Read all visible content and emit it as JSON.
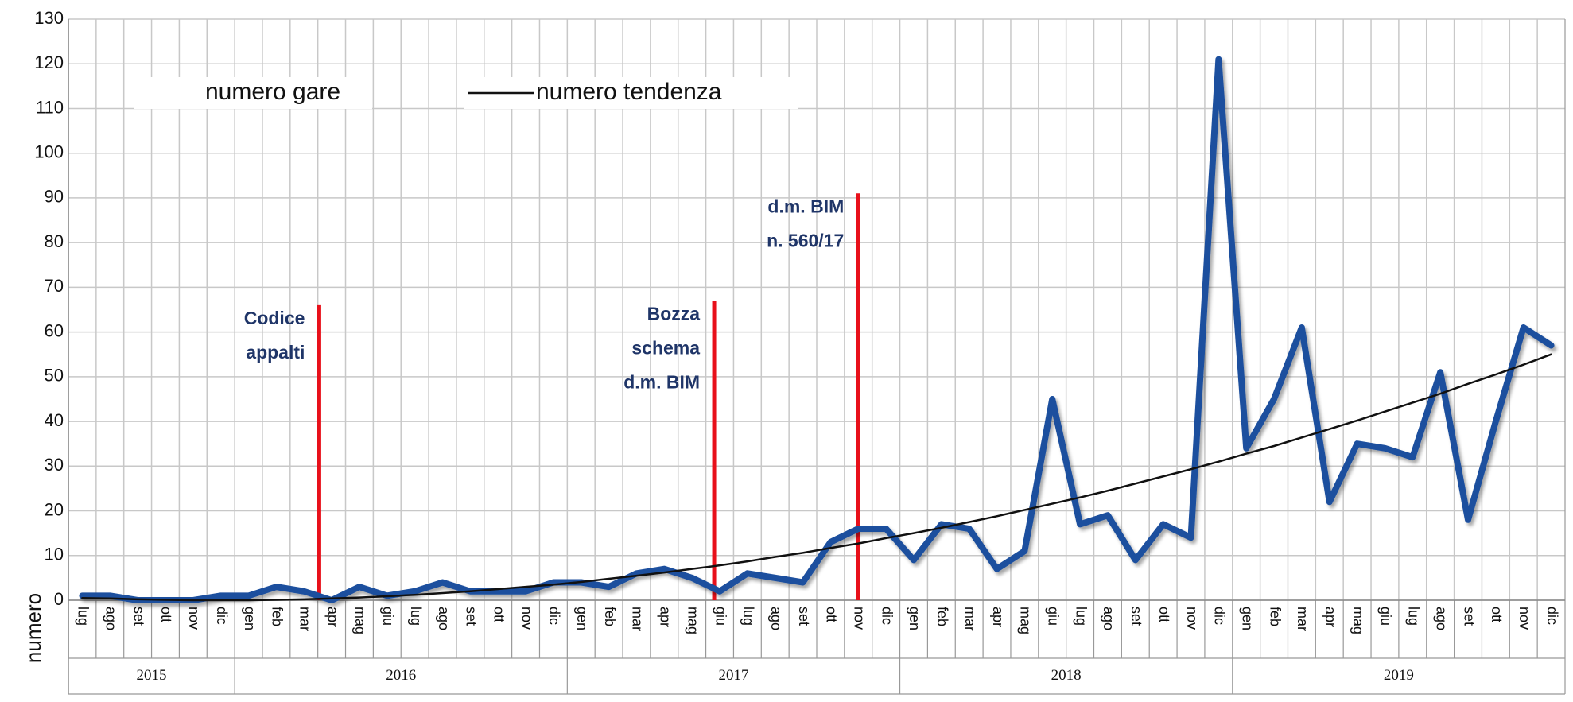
{
  "chart_data": {
    "type": "line",
    "y_label": "numero",
    "ylim": [
      0,
      130
    ],
    "yticks": [
      0,
      10,
      20,
      30,
      40,
      50,
      60,
      70,
      80,
      90,
      100,
      110,
      120,
      130
    ],
    "grid": true,
    "years": [
      {
        "year": "2015",
        "months": [
          "lug",
          "ago",
          "set",
          "ott",
          "nov",
          "dic"
        ]
      },
      {
        "year": "2016",
        "months": [
          "gen",
          "feb",
          "mar",
          "apr",
          "mag",
          "giu",
          "lug",
          "ago",
          "set",
          "ott",
          "nov",
          "dic"
        ]
      },
      {
        "year": "2017",
        "months": [
          "gen",
          "feb",
          "mar",
          "apr",
          "mag",
          "giu",
          "lug",
          "ago",
          "set",
          "ott",
          "nov",
          "dic"
        ]
      },
      {
        "year": "2018",
        "months": [
          "gen",
          "feb",
          "mar",
          "apr",
          "mag",
          "giu",
          "lug",
          "ago",
          "set",
          "ott",
          "nov",
          "dic"
        ]
      },
      {
        "year": "2019",
        "months": [
          "gen",
          "feb",
          "mar",
          "apr",
          "mag",
          "giu",
          "lug",
          "ago",
          "set",
          "ott",
          "nov",
          "dic"
        ]
      }
    ],
    "series": [
      {
        "name": "numero gare",
        "color": "#1c4f9e",
        "values": [
          1,
          1,
          0,
          0,
          0,
          1,
          1,
          3,
          2,
          0,
          3,
          1,
          2,
          4,
          2,
          2,
          2,
          4,
          4,
          3,
          6,
          7,
          5,
          2,
          6,
          5,
          4,
          13,
          16,
          16,
          9,
          17,
          16,
          7,
          11,
          45,
          17,
          19,
          9,
          17,
          14,
          121,
          34,
          45,
          61,
          22,
          35,
          34,
          32,
          51,
          18,
          40,
          61,
          57
        ]
      },
      {
        "name": "numero tendenza",
        "color": "#111111",
        "values": [
          0.5,
          0.4,
          0.2,
          0.1,
          0,
          0,
          0,
          0.1,
          0.2,
          0.4,
          0.6,
          0.9,
          1.2,
          1.6,
          2.0,
          2.5,
          3.0,
          3.5,
          4.1,
          4.8,
          5.5,
          6.2,
          7.0,
          7.8,
          8.7,
          9.7,
          10.6,
          11.7,
          12.7,
          13.9,
          15.0,
          16.2,
          17.5,
          18.8,
          20.2,
          21.6,
          23.0,
          24.5,
          26.1,
          27.7,
          29.3,
          31.0,
          32.8,
          34.5,
          36.4,
          38.3,
          40.2,
          42.2,
          44.2,
          46.2,
          48.4,
          50.5,
          52.7,
          55.0
        ]
      }
    ],
    "annotations": [
      {
        "lines": [
          "Codice",
          "appalti"
        ],
        "value": 66
      },
      {
        "lines": [
          "Bozza",
          "schema",
          "d.m. BIM"
        ],
        "value": 67
      },
      {
        "lines": [
          "d.m. BIM",
          "n. 560/17"
        ],
        "value": 91
      }
    ]
  }
}
